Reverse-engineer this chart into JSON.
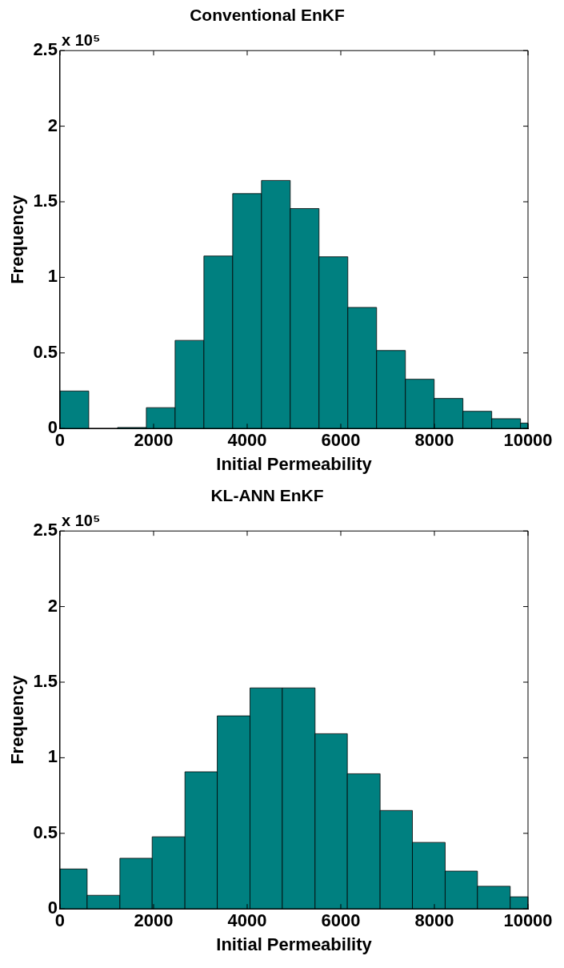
{
  "chart_data": [
    {
      "type": "histogram",
      "title": "Conventional EnKF",
      "xlabel": "Initial Permeability",
      "ylabel": "Frequency",
      "color": "#008080",
      "bins": [
        0,
        615,
        1230,
        1845,
        2460,
        3075,
        3690,
        4305,
        4920,
        5535,
        6150,
        6765,
        7380,
        7995,
        8610,
        9225,
        9840,
        10000
      ],
      "values": [
        0.248,
        0,
        0.007,
        0.138,
        0.583,
        1.141,
        1.554,
        1.641,
        1.455,
        1.136,
        0.801,
        0.516,
        0.326,
        0.199,
        0.114,
        0.065,
        0.036
      ],
      "xlim": [
        0,
        10000
      ],
      "xticks": [
        0,
        2000,
        4000,
        6000,
        8000,
        10000
      ],
      "ylim": [
        0,
        2.5
      ],
      "yticks": [
        0,
        0.5,
        1,
        1.5,
        2,
        2.5
      ],
      "annotations": [
        "x 10⁵"
      ],
      "grid": false,
      "legend": false
    },
    {
      "type": "histogram",
      "title": "KL-ANN EnKF",
      "xlabel": "Initial Permeability",
      "ylabel": "Frequency",
      "color": "#008080",
      "bins": [
        0,
        580,
        1280,
        1970,
        2670,
        3360,
        4060,
        4750,
        5450,
        6140,
        6840,
        7530,
        8230,
        8920,
        9620,
        10000
      ],
      "values": [
        0.264,
        0.09,
        0.335,
        0.477,
        0.907,
        1.277,
        1.462,
        1.462,
        1.159,
        0.894,
        0.651,
        0.44,
        0.25,
        0.15,
        0.08
      ],
      "xlim": [
        0,
        10000
      ],
      "xticks": [
        0,
        2000,
        4000,
        6000,
        8000,
        10000
      ],
      "ylim": [
        0,
        2.5
      ],
      "yticks": [
        0,
        0.5,
        1,
        1.5,
        2,
        2.5
      ],
      "annotations": [
        "x 10⁵"
      ],
      "grid": false,
      "legend": false
    }
  ]
}
